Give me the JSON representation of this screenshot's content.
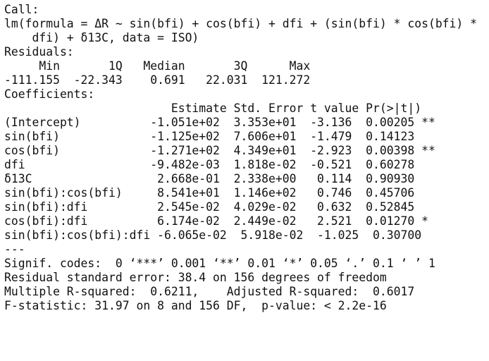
{
  "console": {
    "lines": [
      "Call:",
      "lm(formula = ΔR ~ sin(bfi) + cos(bfi) + dfi + (sin(bfi) * cos(bfi) *",
      "    dfi) + δ13C, data = ISO)",
      "",
      "Residuals:",
      "     Min       1Q   Median       3Q      Max",
      "-111.155  -22.343    0.691   22.031  121.272",
      "",
      "Coefficients:",
      "                        Estimate Std. Error t value Pr(>|t|)",
      "(Intercept)          -1.051e+02  3.353e+01  -3.136  0.00205 **",
      "sin(bfi)             -1.125e+02  7.606e+01  -1.479  0.14123",
      "cos(bfi)             -1.271e+02  4.349e+01  -2.923  0.00398 **",
      "dfi                  -9.482e-03  1.818e-02  -0.521  0.60278",
      "δ13C                  2.668e-01  2.338e+00   0.114  0.90930",
      "sin(bfi):cos(bfi)     8.541e+01  1.146e+02   0.746  0.45706",
      "sin(bfi):dfi          2.545e-02  4.029e-02   0.632  0.52845",
      "cos(bfi):dfi          6.174e-02  2.449e-02   2.521  0.01270 *",
      "sin(bfi):cos(bfi):dfi -6.065e-02  5.918e-02  -1.025  0.30700",
      "---",
      "Signif. codes:  0 ‘***’ 0.001 ‘**’ 0.01 ‘*’ 0.05 ‘.’ 0.1 ‘ ’ 1",
      "",
      "Residual standard error: 38.4 on 156 degrees of freedom",
      "Multiple R-squared:  0.6211,\tAdjusted R-squared:  0.6017 ",
      "F-statistic: 31.97 on 8 and 156 DF,  p-value: < 2.2e-16"
    ]
  }
}
